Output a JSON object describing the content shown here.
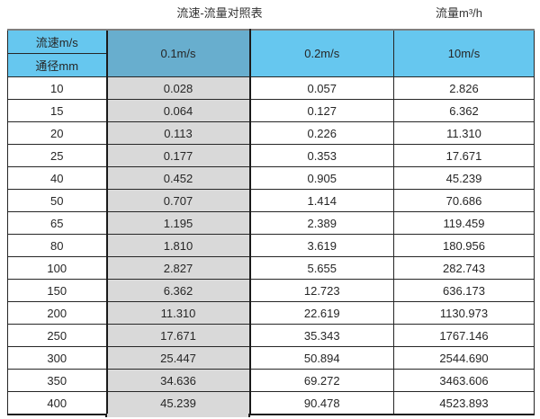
{
  "titles": {
    "left": "流速-流量对照表",
    "right": "流量m³/h"
  },
  "table": {
    "corner_top": "流速m/s",
    "corner_bottom": "通径mm",
    "velocity_columns": [
      "0.1m/s",
      "0.2m/s",
      "10m/s"
    ],
    "rows": [
      {
        "dn": "10",
        "v1": "0.028",
        "v2": "0.057",
        "v3": "2.826"
      },
      {
        "dn": "15",
        "v1": "0.064",
        "v2": "0.127",
        "v3": "6.362"
      },
      {
        "dn": "20",
        "v1": "0.113",
        "v2": "0.226",
        "v3": "11.310"
      },
      {
        "dn": "25",
        "v1": "0.177",
        "v2": "0.353",
        "v3": "17.671"
      },
      {
        "dn": "40",
        "v1": "0.452",
        "v2": "0.905",
        "v3": "45.239"
      },
      {
        "dn": "50",
        "v1": "0.707",
        "v2": "1.414",
        "v3": "70.686"
      },
      {
        "dn": "65",
        "v1": "1.195",
        "v2": "2.389",
        "v3": "119.459"
      },
      {
        "dn": "80",
        "v1": "1.810",
        "v2": "3.619",
        "v3": "180.956"
      },
      {
        "dn": "100",
        "v1": "2.827",
        "v2": "5.655",
        "v3": "282.743"
      },
      {
        "dn": "150",
        "v1": "6.362",
        "v2": "12.723",
        "v3": "636.173"
      },
      {
        "dn": "200",
        "v1": "11.310",
        "v2": "22.619",
        "v3": "1130.973"
      },
      {
        "dn": "250",
        "v1": "17.671",
        "v2": "35.343",
        "v3": "1767.146"
      },
      {
        "dn": "300",
        "v1": "25.447",
        "v2": "50.894",
        "v3": "2544.690"
      },
      {
        "dn": "350",
        "v1": "34.636",
        "v2": "69.272",
        "v3": "3463.606"
      },
      {
        "dn": "400",
        "v1": "45.239",
        "v2": "90.478",
        "v3": "4523.893"
      }
    ]
  },
  "colors": {
    "header_blue": "#66c7ef",
    "header_blue_selected": "#68aece",
    "highlight_column_gray": "#d9d9d9",
    "grid_border": "#262626",
    "top_rule_gray": "#7f7f7f",
    "text": "#262626"
  },
  "chart_data": {
    "type": "table",
    "title": "流速-流量对照表",
    "unit_label": "流量m³/h",
    "row_header_label": "流速m/s",
    "column_header_label": "通径mm",
    "columns": [
      "通径mm",
      "0.1m/s",
      "0.2m/s",
      "10m/s"
    ],
    "rows": [
      [
        10,
        0.028,
        0.057,
        2.826
      ],
      [
        15,
        0.064,
        0.127,
        6.362
      ],
      [
        20,
        0.113,
        0.226,
        11.31
      ],
      [
        25,
        0.177,
        0.353,
        17.671
      ],
      [
        40,
        0.452,
        0.905,
        45.239
      ],
      [
        50,
        0.707,
        1.414,
        70.686
      ],
      [
        65,
        1.195,
        2.389,
        119.459
      ],
      [
        80,
        1.81,
        3.619,
        180.956
      ],
      [
        100,
        2.827,
        5.655,
        282.743
      ],
      [
        150,
        6.362,
        12.723,
        636.173
      ],
      [
        200,
        11.31,
        22.619,
        1130.973
      ],
      [
        250,
        17.671,
        35.343,
        1767.146
      ],
      [
        300,
        25.447,
        50.894,
        2544.69
      ],
      [
        350,
        34.636,
        69.272,
        3463.606
      ],
      [
        400,
        45.239,
        90.478,
        4523.893
      ]
    ],
    "layout": {
      "highlighted_column": "0.1m/s",
      "header_fill": "#66c7ef",
      "highlight_fill": "#d9d9d9"
    }
  }
}
